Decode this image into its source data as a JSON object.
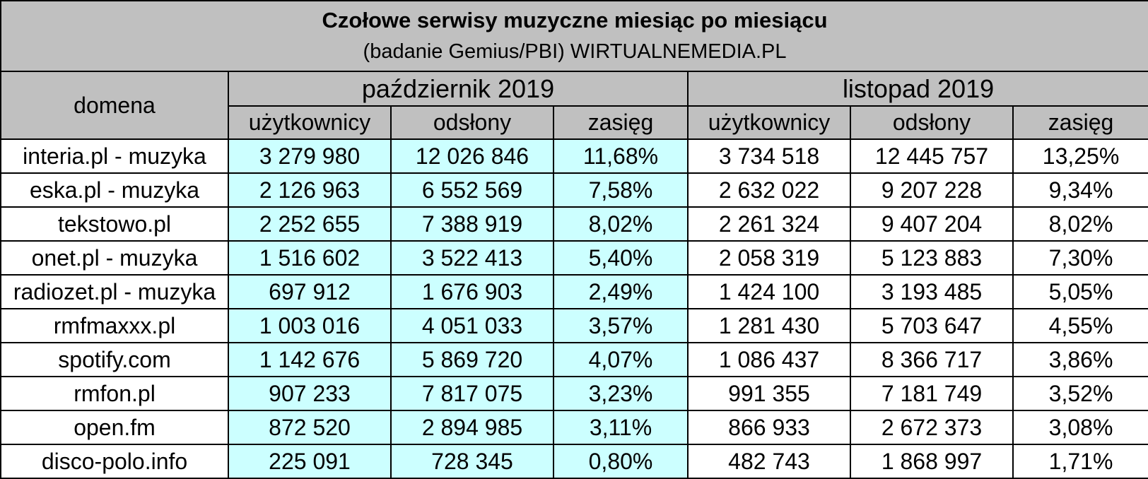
{
  "title": "Czołowe serwisy muzyczne miesiąc po miesiącu",
  "subtitle": "(badanie Gemius/PBI) WIRTUALNEMEDIA.PL",
  "domain_header": "domena",
  "months": [
    "październik 2019",
    "listopad 2019"
  ],
  "columns": [
    "użytkownicy",
    "odsłony",
    "zasięg"
  ],
  "colors": {
    "header_bg": "#c0c0c0",
    "october_bg": "#ccffff",
    "november_bg": "#ffffff"
  },
  "rows": [
    {
      "domain": "interia.pl - muzyka",
      "oct": [
        "3 279 980",
        "12 026 846",
        "11,68%"
      ],
      "nov": [
        "3 734 518",
        "12 445 757",
        "13,25%"
      ]
    },
    {
      "domain": "eska.pl - muzyka",
      "oct": [
        "2 126 963",
        "6 552 569",
        "7,58%"
      ],
      "nov": [
        "2 632 022",
        "9 207 228",
        "9,34%"
      ]
    },
    {
      "domain": "tekstowo.pl",
      "oct": [
        "2 252 655",
        "7 388 919",
        "8,02%"
      ],
      "nov": [
        "2 261 324",
        "9 407 204",
        "8,02%"
      ]
    },
    {
      "domain": "onet.pl - muzyka",
      "oct": [
        "1 516 602",
        "3 522 413",
        "5,40%"
      ],
      "nov": [
        "2 058 319",
        "5 123 883",
        "7,30%"
      ]
    },
    {
      "domain": "radiozet.pl - muzyka",
      "oct": [
        "697 912",
        "1 676 903",
        "2,49%"
      ],
      "nov": [
        "1 424 100",
        "3 193 485",
        "5,05%"
      ]
    },
    {
      "domain": "rmfmaxxx.pl",
      "oct": [
        "1 003 016",
        "4 051 033",
        "3,57%"
      ],
      "nov": [
        "1 281 430",
        "5 703 647",
        "4,55%"
      ]
    },
    {
      "domain": "spotify.com",
      "oct": [
        "1 142 676",
        "5 869 720",
        "4,07%"
      ],
      "nov": [
        "1 086 437",
        "8 366 717",
        "3,86%"
      ]
    },
    {
      "domain": "rmfon.pl",
      "oct": [
        "907 233",
        "7 817 075",
        "3,23%"
      ],
      "nov": [
        "991 355",
        "7 181 749",
        "3,52%"
      ]
    },
    {
      "domain": "open.fm",
      "oct": [
        "872 520",
        "2 894 985",
        "3,11%"
      ],
      "nov": [
        "866 933",
        "2 672 373",
        "3,08%"
      ]
    },
    {
      "domain": "disco-polo.info",
      "oct": [
        "225 091",
        "728 345",
        "0,80%"
      ],
      "nov": [
        "482 743",
        "1 868 997",
        "1,71%"
      ]
    }
  ]
}
